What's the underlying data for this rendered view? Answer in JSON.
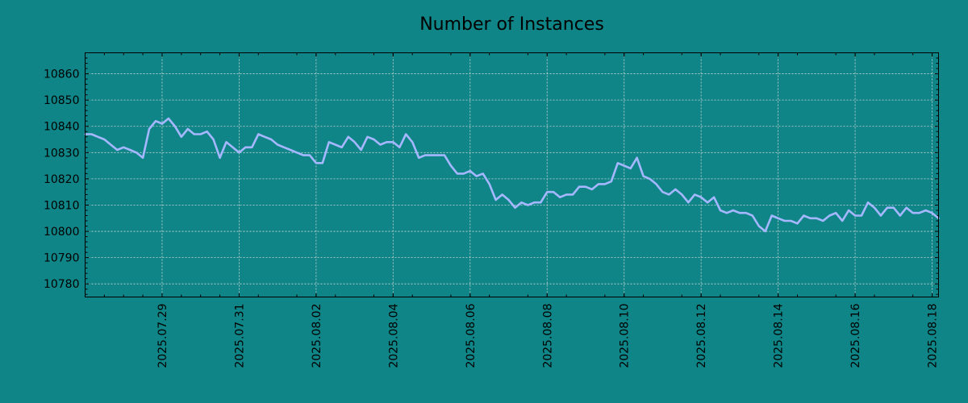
{
  "colors": {
    "background": "#108587",
    "line": "#a5b8ff",
    "grid": "#c9d7d7",
    "axis": "#000000"
  },
  "chart_data": {
    "type": "line",
    "title": "Number of Instances",
    "xlabel": "",
    "ylabel": "",
    "grid": true,
    "legend": "none",
    "xlim": [
      "2025-07-27 00:00",
      "2025-08-18 04:00"
    ],
    "ylim": [
      10775,
      10868
    ],
    "y_ticks": [
      10780,
      10790,
      10800,
      10810,
      10820,
      10830,
      10840,
      10850,
      10860
    ],
    "x_ticks": [
      "2025.07.29",
      "2025.07.31",
      "2025.08.02",
      "2025.08.04",
      "2025.08.06",
      "2025.08.08",
      "2025.08.10",
      "2025.08.12",
      "2025.08.14",
      "2025.08.16",
      "2025.08.18"
    ],
    "series": [
      {
        "x": [
          "2025-07-27 00:00",
          "2025-07-27 04:00",
          "2025-07-27 08:00",
          "2025-07-27 12:00",
          "2025-07-27 16:00",
          "2025-07-27 20:00",
          "2025-07-28 00:00",
          "2025-07-28 04:00",
          "2025-07-28 08:00",
          "2025-07-28 12:00",
          "2025-07-28 16:00",
          "2025-07-28 20:00",
          "2025-07-29 00:00",
          "2025-07-29 04:00",
          "2025-07-29 08:00",
          "2025-07-29 12:00",
          "2025-07-29 16:00",
          "2025-07-29 20:00",
          "2025-07-30 00:00",
          "2025-07-30 04:00",
          "2025-07-30 08:00",
          "2025-07-30 12:00",
          "2025-07-30 16:00",
          "2025-07-30 20:00",
          "2025-07-31 00:00",
          "2025-07-31 04:00",
          "2025-07-31 08:00",
          "2025-07-31 12:00",
          "2025-07-31 16:00",
          "2025-07-31 20:00",
          "2025-08-01 00:00",
          "2025-08-01 04:00",
          "2025-08-01 08:00",
          "2025-08-01 12:00",
          "2025-08-01 16:00",
          "2025-08-01 20:00",
          "2025-08-02 00:00",
          "2025-08-02 04:00",
          "2025-08-02 08:00",
          "2025-08-02 12:00",
          "2025-08-02 16:00",
          "2025-08-02 20:00",
          "2025-08-03 00:00",
          "2025-08-03 04:00",
          "2025-08-03 08:00",
          "2025-08-03 12:00",
          "2025-08-03 16:00",
          "2025-08-03 20:00",
          "2025-08-04 00:00",
          "2025-08-04 04:00",
          "2025-08-04 08:00",
          "2025-08-04 12:00",
          "2025-08-04 16:00",
          "2025-08-04 20:00",
          "2025-08-05 00:00",
          "2025-08-05 04:00",
          "2025-08-05 08:00",
          "2025-08-05 12:00",
          "2025-08-05 16:00",
          "2025-08-05 20:00",
          "2025-08-06 00:00",
          "2025-08-06 04:00",
          "2025-08-06 08:00",
          "2025-08-06 12:00",
          "2025-08-06 16:00",
          "2025-08-06 20:00",
          "2025-08-07 00:00",
          "2025-08-07 04:00",
          "2025-08-07 08:00",
          "2025-08-07 12:00",
          "2025-08-07 16:00",
          "2025-08-07 20:00",
          "2025-08-08 00:00",
          "2025-08-08 04:00",
          "2025-08-08 08:00",
          "2025-08-08 12:00",
          "2025-08-08 16:00",
          "2025-08-08 20:00",
          "2025-08-09 00:00",
          "2025-08-09 04:00",
          "2025-08-09 08:00",
          "2025-08-09 12:00",
          "2025-08-09 16:00",
          "2025-08-09 20:00",
          "2025-08-10 00:00",
          "2025-08-10 04:00",
          "2025-08-10 08:00",
          "2025-08-10 12:00",
          "2025-08-10 16:00",
          "2025-08-10 20:00",
          "2025-08-11 00:00",
          "2025-08-11 04:00",
          "2025-08-11 08:00",
          "2025-08-11 12:00",
          "2025-08-11 16:00",
          "2025-08-11 20:00",
          "2025-08-12 00:00",
          "2025-08-12 04:00",
          "2025-08-12 08:00",
          "2025-08-12 12:00",
          "2025-08-12 16:00",
          "2025-08-12 20:00",
          "2025-08-13 00:00",
          "2025-08-13 04:00",
          "2025-08-13 08:00",
          "2025-08-13 12:00",
          "2025-08-13 16:00",
          "2025-08-13 20:00",
          "2025-08-14 00:00",
          "2025-08-14 04:00",
          "2025-08-14 08:00",
          "2025-08-14 12:00",
          "2025-08-14 16:00",
          "2025-08-14 20:00",
          "2025-08-15 00:00",
          "2025-08-15 04:00",
          "2025-08-15 08:00",
          "2025-08-15 12:00",
          "2025-08-15 16:00",
          "2025-08-15 20:00",
          "2025-08-16 00:00",
          "2025-08-16 04:00",
          "2025-08-16 08:00",
          "2025-08-16 12:00",
          "2025-08-16 16:00",
          "2025-08-16 20:00",
          "2025-08-17 00:00",
          "2025-08-17 04:00",
          "2025-08-17 08:00",
          "2025-08-17 12:00",
          "2025-08-17 16:00",
          "2025-08-17 20:00",
          "2025-08-18 00:00",
          "2025-08-18 04:00"
        ],
        "y": [
          10837,
          10837,
          10836,
          10835,
          10833,
          10831,
          10832,
          10831,
          10830,
          10828,
          10839,
          10842,
          10841,
          10843,
          10840,
          10836,
          10839,
          10837,
          10837,
          10838,
          10835,
          10828,
          10834,
          10832,
          10830,
          10832,
          10832,
          10837,
          10836,
          10835,
          10833,
          10832,
          10831,
          10830,
          10829,
          10829,
          10826,
          10826,
          10834,
          10833,
          10832,
          10836,
          10834,
          10831,
          10836,
          10835,
          10833,
          10834,
          10834,
          10832,
          10837,
          10834,
          10828,
          10829,
          10829,
          10829,
          10829,
          10825,
          10822,
          10822,
          10823,
          10821,
          10822,
          10818,
          10812,
          10814,
          10812,
          10809,
          10811,
          10810,
          10811,
          10811,
          10815,
          10815,
          10813,
          10814,
          10814,
          10817,
          10817,
          10816,
          10818,
          10818,
          10819,
          10826,
          10825,
          10824,
          10828,
          10821,
          10820,
          10818,
          10815,
          10814,
          10816,
          10814,
          10811,
          10814,
          10813,
          10811,
          10813,
          10808,
          10807,
          10808,
          10807,
          10807,
          10806,
          10802,
          10800,
          10806,
          10805,
          10804,
          10804,
          10803,
          10806,
          10805,
          10805,
          10804,
          10806,
          10807,
          10804,
          10808,
          10806,
          10806,
          10811,
          10809,
          10806,
          10809,
          10809,
          10806,
          10809,
          10807,
          10807,
          10808,
          10807,
          10805
        ]
      }
    ]
  }
}
